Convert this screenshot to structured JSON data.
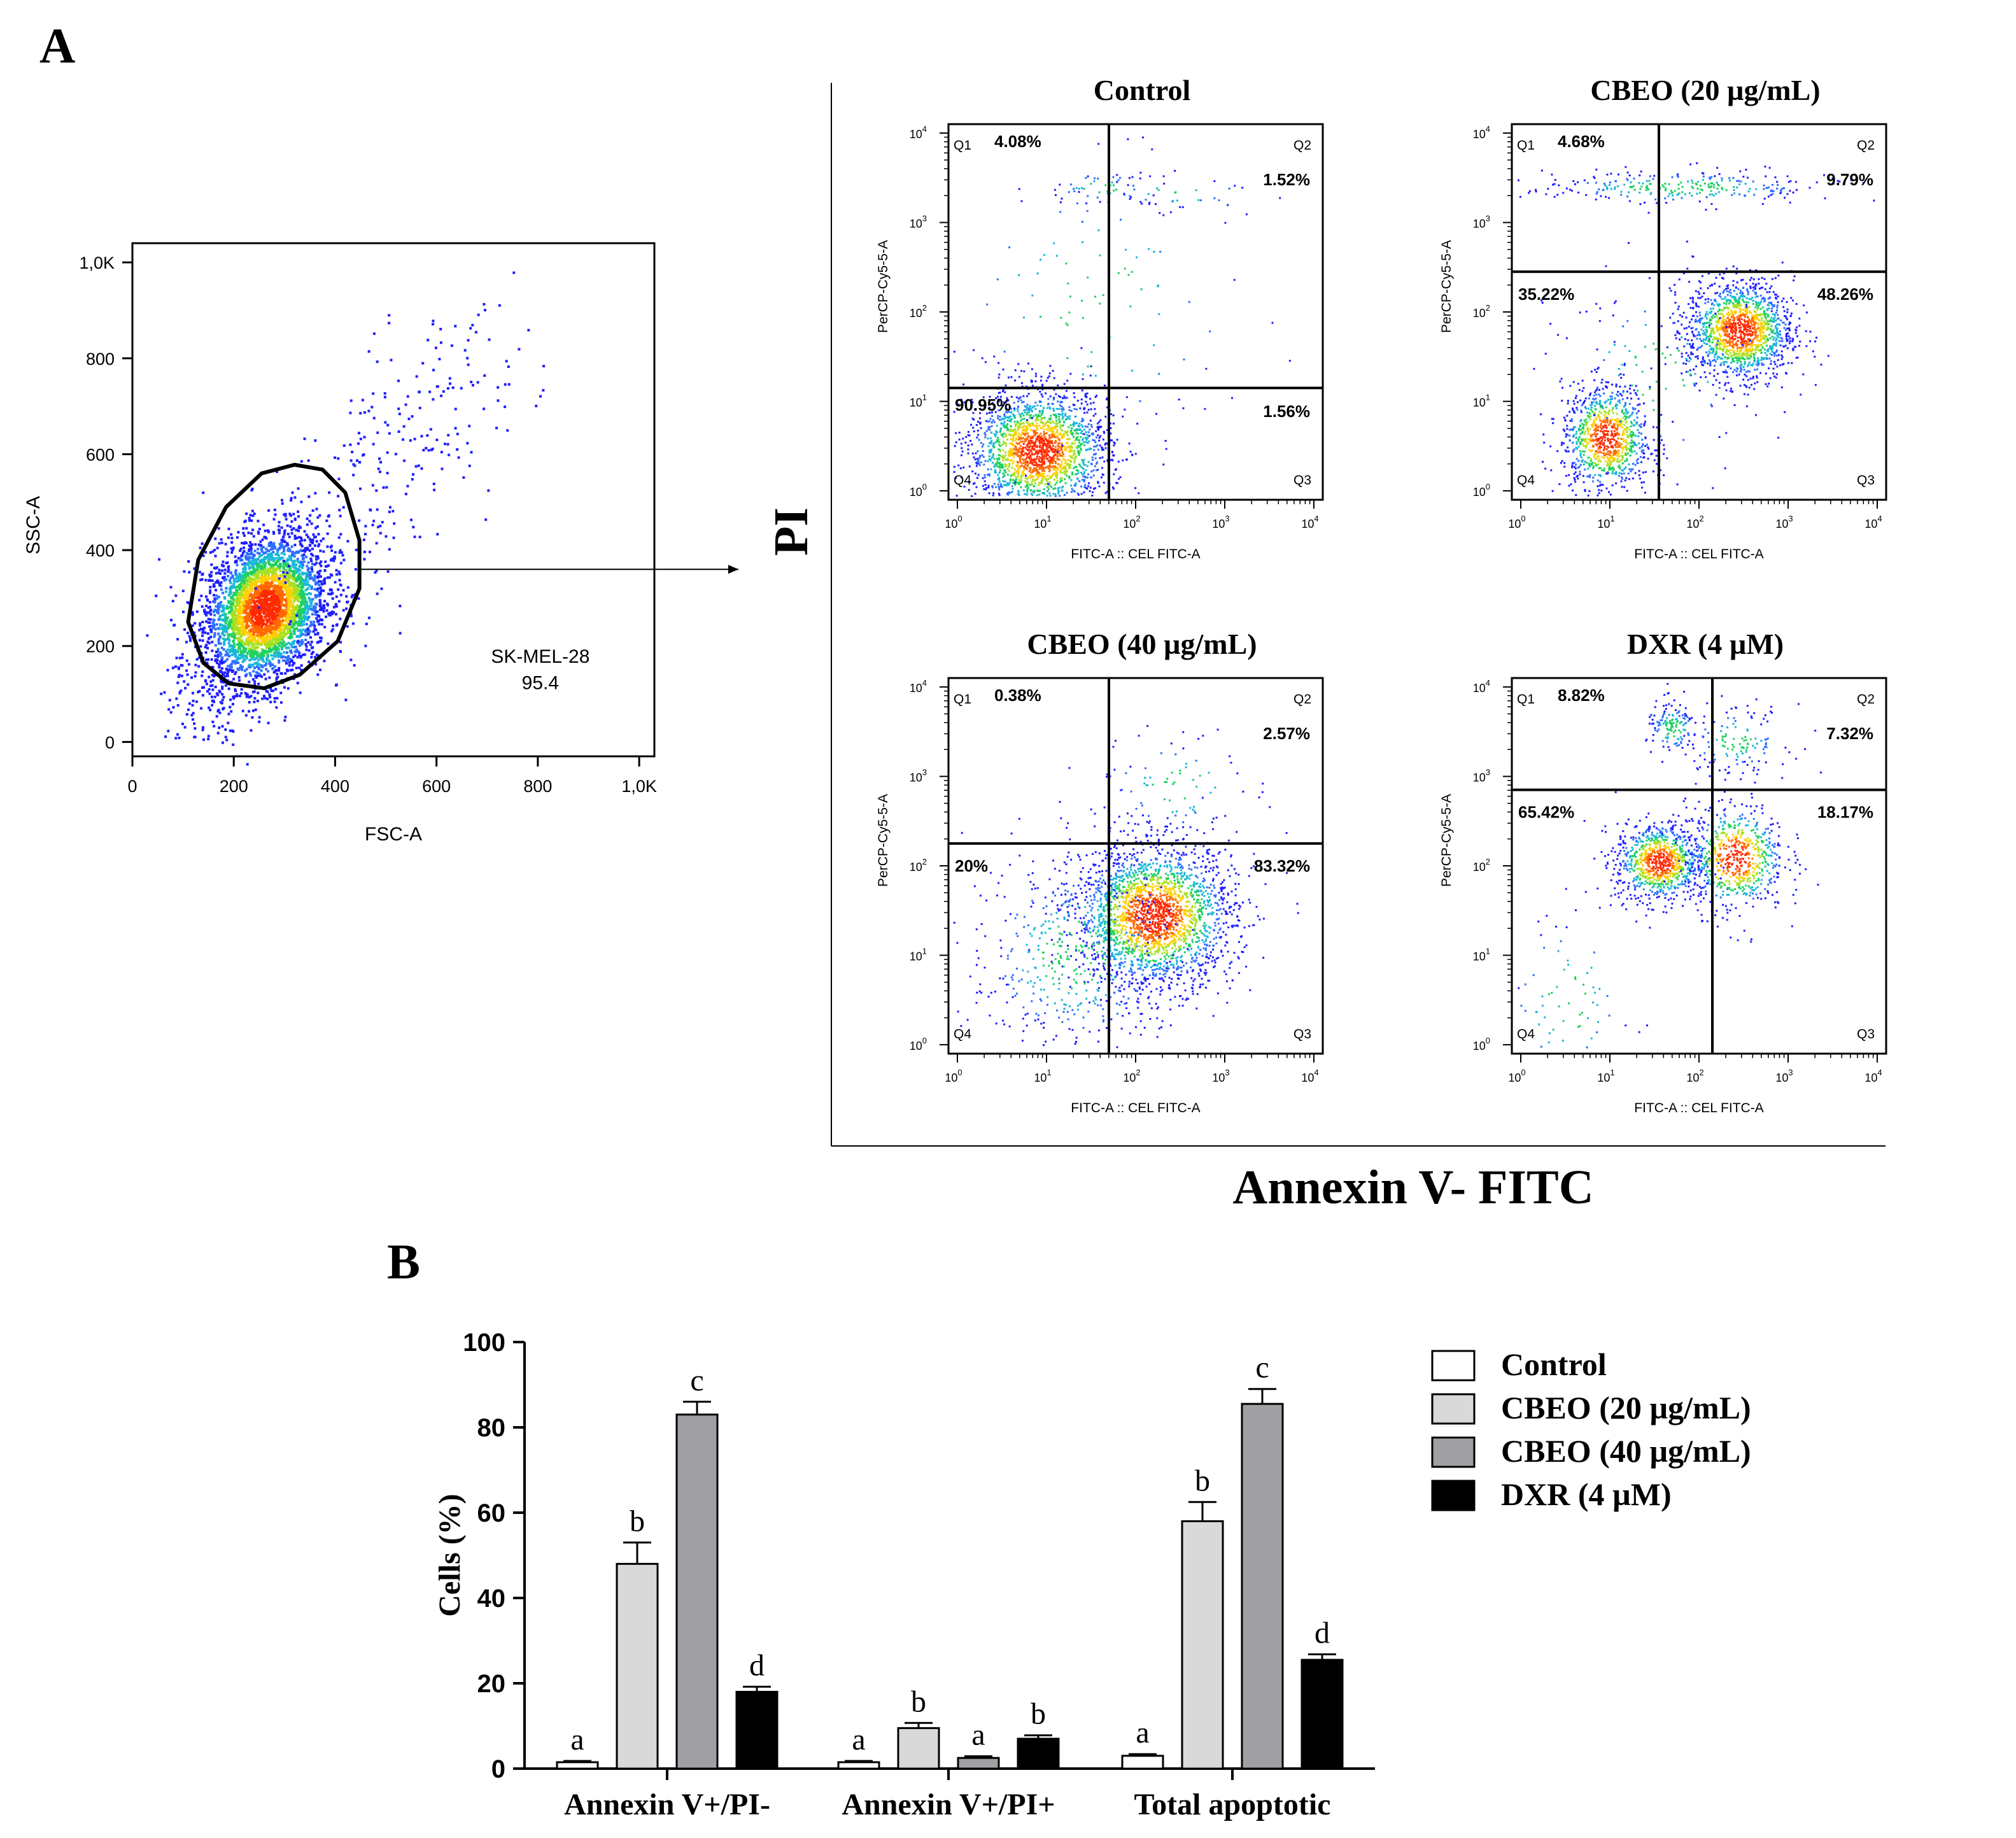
{
  "panel_labels": {
    "a": "A",
    "b": "B"
  },
  "chart_data": [
    {
      "type": "scatter",
      "id": "gating",
      "x_axis_label": "FSC-A",
      "y_axis_label": "SSC-A",
      "x_ticks": [
        "0",
        "200",
        "400",
        "600",
        "800",
        "1,0K"
      ],
      "y_ticks": [
        "0",
        "200",
        "400",
        "600",
        "800",
        "1,0K"
      ],
      "xlim": [
        0,
        1030
      ],
      "ylim": [
        -30,
        1040
      ],
      "gate_name": "SK-MEL-28",
      "gate_value": "95.4",
      "population_center": [
        260,
        280
      ],
      "gate_polygon": [
        [
          260,
          112
        ],
        [
          330,
          140
        ],
        [
          405,
          210
        ],
        [
          448,
          320
        ],
        [
          448,
          420
        ],
        [
          420,
          520
        ],
        [
          375,
          568
        ],
        [
          320,
          578
        ],
        [
          255,
          560
        ],
        [
          185,
          490
        ],
        [
          130,
          380
        ],
        [
          110,
          250
        ],
        [
          140,
          165
        ],
        [
          190,
          122
        ]
      ]
    },
    {
      "type": "scatter",
      "id": "quadrant_plots",
      "shared_y_label": "PI",
      "shared_x_label": "Annexin V- FITC",
      "x_axis_label": "FITC-A :: CEL FITC-A",
      "y_axis_label": "PerCP-Cy5-5-A",
      "axis_scale": "log10",
      "xlim_log": [
        -0.1,
        4.1
      ],
      "ylim_log": [
        -0.1,
        4.1
      ],
      "tick_exponents": [
        "0",
        "1",
        "2",
        "3",
        "4"
      ],
      "tick_base": "10",
      "quadrant_names": [
        "Q1",
        "Q2",
        "Q3",
        "Q4"
      ],
      "plots": [
        {
          "title": "Control",
          "gate_x_log": 1.7,
          "gate_y_log": 1.15,
          "q1": "4.08%",
          "q2": "1.52%",
          "q3": "1.56%",
          "q4": "90.95%",
          "populations": [
            [
              0.9,
              0.45,
              0.4,
              0.35,
              3800
            ],
            [
              1.6,
              3.4,
              0.3,
              0.1,
              90
            ],
            [
              2.5,
              3.35,
              0.5,
              0.1,
              60
            ],
            [
              1.5,
              2.0,
              1.0,
              1.0,
              200
            ]
          ]
        },
        {
          "title": "CBEO (20 µg/mL)",
          "gate_x_log": 1.55,
          "gate_y_log": 2.45,
          "q1": "4.68%",
          "q2": "9.79%",
          "q3": "",
          "q4": "",
          "upper_left_value": "35.22%",
          "upper_right_value": "48.26%",
          "populations": [
            [
              2.45,
              1.8,
              0.3,
              0.28,
              2600
            ],
            [
              0.95,
              0.6,
              0.25,
              0.3,
              1700
            ],
            [
              1.8,
              3.4,
              0.9,
              0.1,
              500
            ],
            [
              1.5,
              1.3,
              0.6,
              0.6,
              250
            ]
          ]
        },
        {
          "title": "CBEO (40 µg/mL)",
          "gate_x_log": 1.7,
          "gate_y_log": 2.25,
          "q1": "0.38%",
          "q2": "2.57%",
          "q3": "",
          "q4": "",
          "upper_left_value": "20%",
          "upper_right_value": "83.32%",
          "populations": [
            [
              2.2,
              1.45,
              0.45,
              0.4,
              4200
            ],
            [
              1.3,
              1.0,
              0.6,
              0.6,
              900
            ],
            [
              2.5,
              2.9,
              0.5,
              0.3,
              150
            ]
          ]
        },
        {
          "title": "DXR (4 µM)",
          "gate_x_log": 2.15,
          "gate_y_log": 2.85,
          "q1": "8.82%",
          "q2": "7.32%",
          "q3": "",
          "q4": "",
          "upper_left_value": "65.42%",
          "upper_right_value": "18.17%",
          "populations": [
            [
              1.55,
              2.05,
              0.25,
              0.22,
              1600
            ],
            [
              2.4,
              2.1,
              0.28,
              0.3,
              1200
            ],
            [
              1.7,
              3.55,
              0.15,
              0.15,
              250
            ],
            [
              2.4,
              3.4,
              0.3,
              0.2,
              250
            ],
            [
              0.5,
              0.5,
              0.4,
              0.6,
              150
            ]
          ]
        }
      ]
    },
    {
      "type": "bar",
      "id": "apoptosis_bars",
      "ylabel": "Cells (%)",
      "ylim": [
        0,
        100
      ],
      "y_ticks": [
        "0",
        "20",
        "40",
        "60",
        "80",
        "100"
      ],
      "categories": [
        "Annexin V+/PI-",
        "Annexin V+/PI+",
        "Total apoptotic"
      ],
      "series": [
        {
          "name": "Control",
          "color": "#ffffff",
          "values": [
            1.5,
            1.5,
            3
          ],
          "errors": [
            0.3,
            0.3,
            0.4
          ],
          "letters": [
            "a",
            "a",
            "a"
          ]
        },
        {
          "name": "CBEO (20 µg/mL)",
          "color": "#d9d9d9",
          "values": [
            48,
            9.5,
            58
          ],
          "errors": [
            5,
            1.2,
            4.5
          ],
          "letters": [
            "b",
            "b",
            "b"
          ]
        },
        {
          "name": "CBEO (40 µg/mL)",
          "color": "#a0a0a4",
          "values": [
            83,
            2.5,
            85.5
          ],
          "errors": [
            3,
            0.4,
            3.5
          ],
          "letters": [
            "c",
            "a",
            "c"
          ]
        },
        {
          "name": "DXR (4 µM)",
          "color": "#000000",
          "values": [
            18,
            7,
            25.5
          ],
          "errors": [
            1.2,
            0.8,
            1.3
          ],
          "letters": [
            "d",
            "b",
            "d"
          ]
        }
      ]
    }
  ]
}
